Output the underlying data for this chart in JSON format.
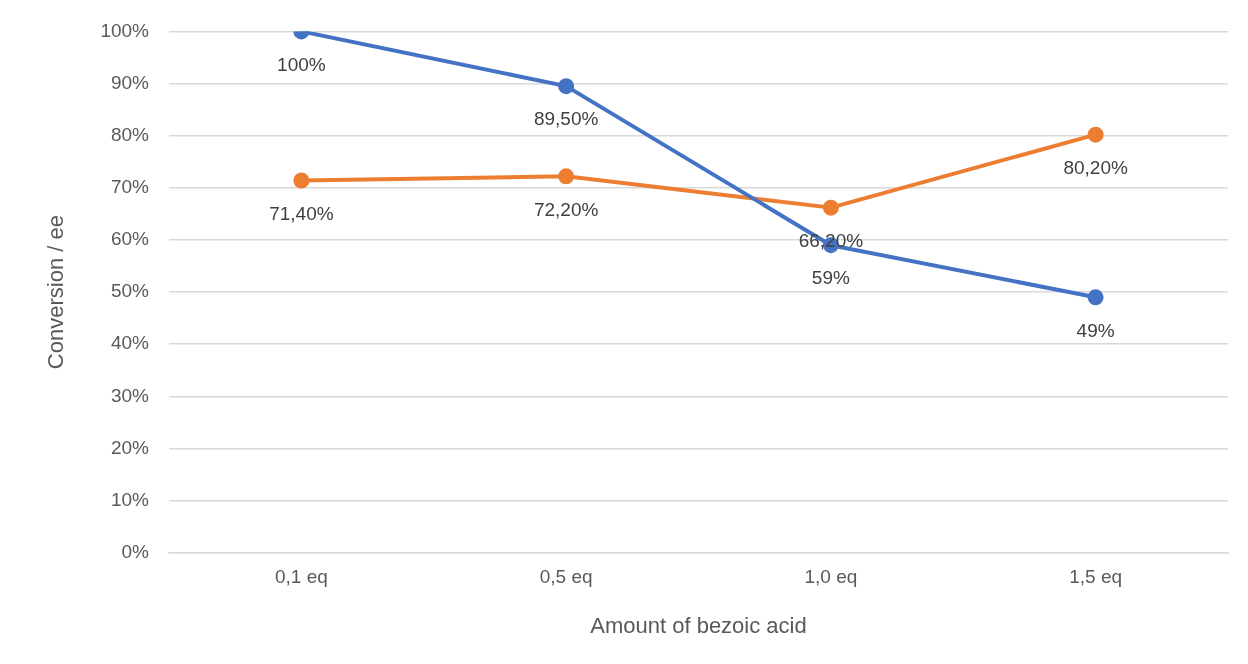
{
  "chart_data": {
    "type": "line",
    "xlabel": "Amount of bezoic acid",
    "ylabel": "Conversion / ee",
    "categories": [
      "0,1 eq",
      "0,5 eq",
      "1,0 eq",
      "1,5 eq"
    ],
    "series": [
      {
        "color": "#4472c4",
        "values": [
          100,
          89.5,
          59,
          49
        ],
        "value_labels": [
          "100%",
          "89,50%",
          "59%",
          "49%"
        ]
      },
      {
        "color": "#ed7d31",
        "values": [
          71.4,
          72.2,
          66.2,
          80.2
        ],
        "value_labels": [
          "71,40%",
          "72,20%",
          "66,20%",
          "80,20%"
        ]
      }
    ],
    "ylim": [
      0,
      100
    ],
    "yticks": [
      {
        "value": 0,
        "label": "0%"
      },
      {
        "value": 10,
        "label": "10%"
      },
      {
        "value": 20,
        "label": "20%"
      },
      {
        "value": 30,
        "label": "30%"
      },
      {
        "value": 40,
        "label": "40%"
      },
      {
        "value": 50,
        "label": "50%"
      },
      {
        "value": 60,
        "label": "60%"
      },
      {
        "value": 70,
        "label": "70%"
      },
      {
        "value": 80,
        "label": "80%"
      },
      {
        "value": 90,
        "label": "90%"
      },
      {
        "value": 100,
        "label": "100%"
      }
    ],
    "grid": "y",
    "legend": false,
    "marker": "circle",
    "line_style": "solid"
  }
}
